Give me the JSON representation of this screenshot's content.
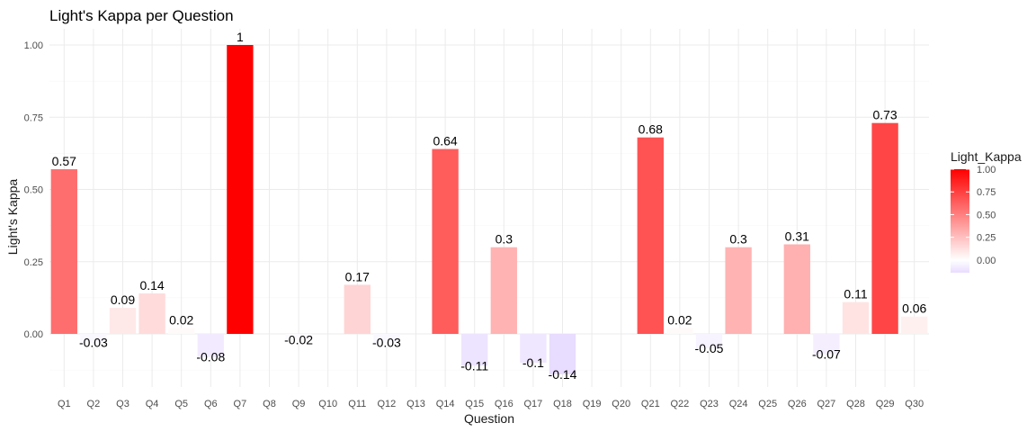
{
  "chart_data": {
    "type": "bar",
    "title": "Light's Kappa per Question",
    "xlabel": "Question",
    "ylabel": "Light's Kappa",
    "categories": [
      "Q1",
      "Q2",
      "Q3",
      "Q4",
      "Q5",
      "Q6",
      "Q7",
      "Q8",
      "Q9",
      "Q10",
      "Q11",
      "Q12",
      "Q13",
      "Q14",
      "Q15",
      "Q16",
      "Q17",
      "Q18",
      "Q19",
      "Q20",
      "Q21",
      "Q22",
      "Q23",
      "Q24",
      "Q25",
      "Q26",
      "Q27",
      "Q28",
      "Q29",
      "Q30"
    ],
    "values": [
      0.57,
      -0.03,
      0.09,
      0.14,
      0.02,
      -0.08,
      1,
      null,
      -0.02,
      null,
      0.17,
      -0.03,
      null,
      0.64,
      -0.11,
      0.3,
      -0.1,
      -0.14,
      null,
      null,
      0.68,
      0.02,
      -0.05,
      0.3,
      null,
      0.31,
      -0.07,
      0.11,
      0.73,
      0.06
    ],
    "data_labels": [
      "0.57",
      "-0.03",
      "0.09",
      "0.14",
      "0.02",
      "-0.08",
      "1",
      "",
      "-0.02",
      "",
      "0.17",
      "-0.03",
      "",
      "0.64",
      "-0.11",
      "0.3",
      "-0.1",
      "-0.14",
      "",
      "",
      "0.68",
      "0.02",
      "-0.05",
      "0.3",
      "",
      "0.31",
      "-0.07",
      "0.11",
      "0.73",
      "0.06"
    ],
    "ylim": [
      -0.15,
      1.05
    ],
    "yticks": [
      "0.00",
      "0.25",
      "0.50",
      "0.75",
      "1.00"
    ],
    "grid": true,
    "legend": {
      "title": "Light_Kappa",
      "placement": "right",
      "ticks": [
        "1.00",
        "0.75",
        "0.50",
        "0.25",
        "0.00"
      ],
      "scale": {
        "low": "#e8dcff",
        "mid": "#ffffff",
        "high": "#ff0000",
        "min": -0.14,
        "max": 1.0
      }
    }
  }
}
